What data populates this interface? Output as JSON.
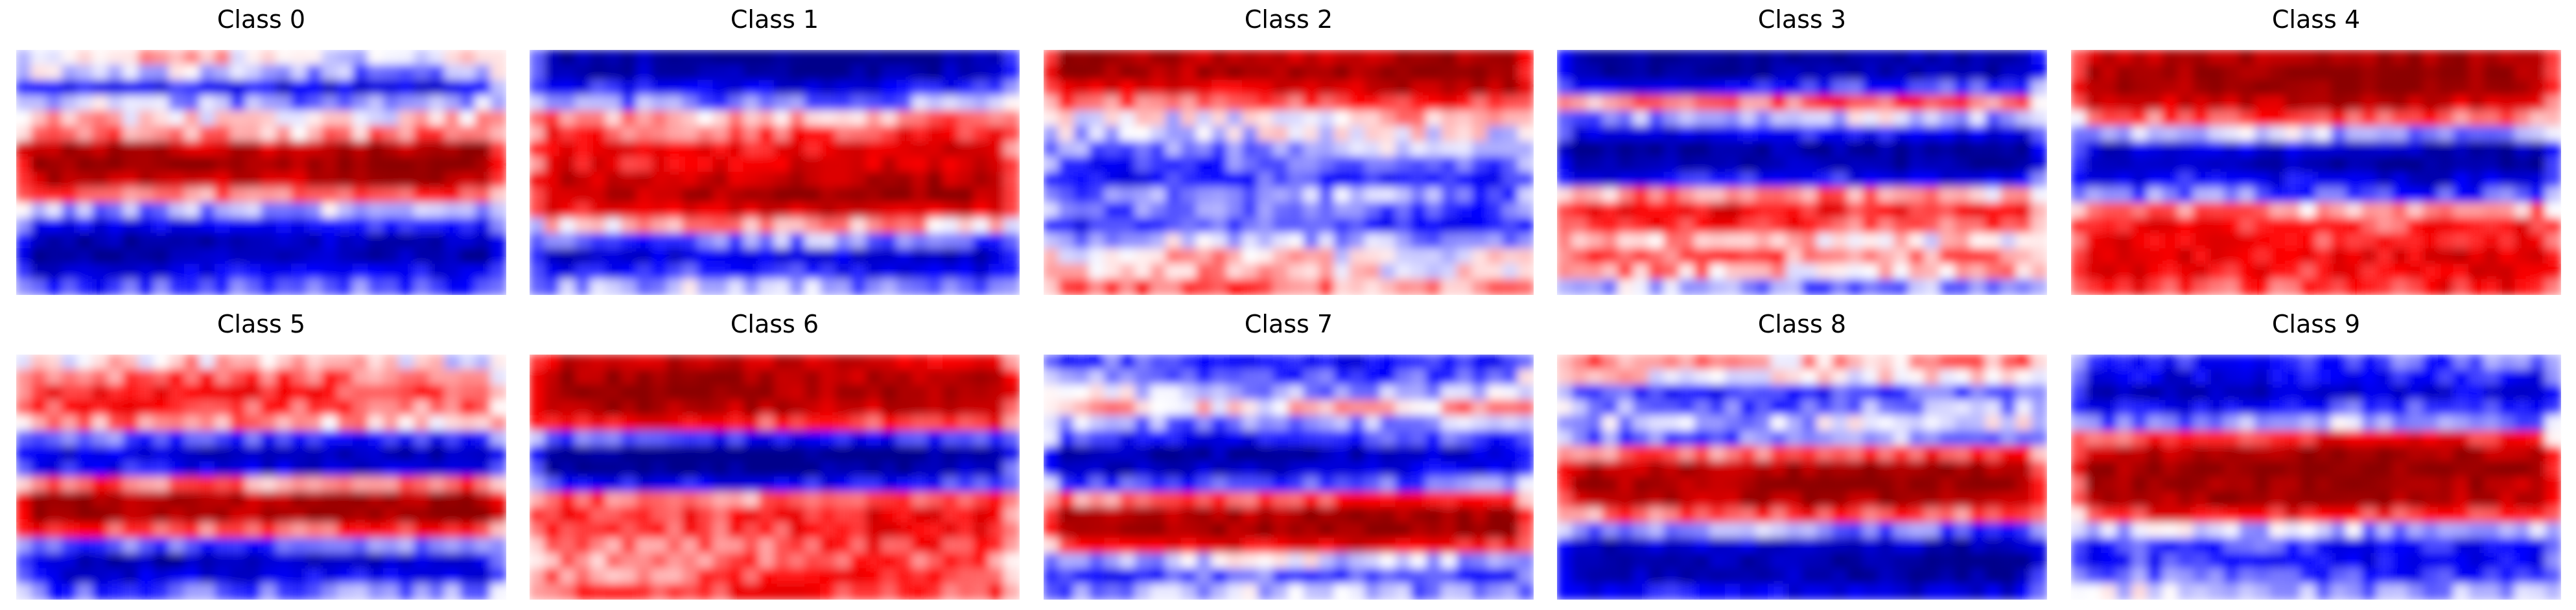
{
  "chart_data": {
    "type": "heatmap",
    "colormap": [
      "#00008b",
      "#0000ff",
      "#ffffff",
      "#ff0000",
      "#8b0000"
    ],
    "value_range": [
      -1,
      1
    ],
    "grid": false,
    "axes_visible": false,
    "layout": "2 rows x 5 columns",
    "panels": [
      {
        "title": "Class 0",
        "row_profile": [
          0.05,
          -0.15,
          -0.55,
          -0.2,
          0.05,
          0.25,
          0.8,
          0.95,
          0.75,
          0.3,
          -0.15,
          -0.55,
          -0.8,
          -0.85,
          -0.6,
          -0.35
        ]
      },
      {
        "title": "Class 1",
        "row_profile": [
          -0.95,
          -0.85,
          -0.55,
          -0.25,
          0.2,
          0.4,
          0.55,
          0.6,
          0.75,
          0.85,
          0.6,
          0.15,
          -0.3,
          -0.7,
          -0.5,
          -0.2
        ]
      },
      {
        "title": "Class 2",
        "row_profile": [
          0.85,
          0.9,
          0.7,
          0.35,
          0.05,
          -0.05,
          -0.2,
          -0.35,
          -0.45,
          -0.25,
          -0.3,
          -0.45,
          -0.15,
          0.05,
          0.1,
          0.3
        ]
      },
      {
        "title": "Class 3",
        "row_profile": [
          -0.95,
          -0.9,
          -0.45,
          0.3,
          -0.15,
          -0.6,
          -0.95,
          -0.9,
          -0.55,
          0.2,
          0.5,
          0.4,
          0.1,
          0.3,
          0.15,
          -0.2
        ]
      },
      {
        "title": "Class 4",
        "row_profile": [
          0.85,
          0.95,
          0.9,
          0.7,
          0.35,
          -0.2,
          -0.75,
          -0.9,
          -0.6,
          -0.35,
          0.2,
          0.45,
          0.5,
          0.6,
          0.55,
          0.45
        ]
      },
      {
        "title": "Class 5",
        "row_profile": [
          0.05,
          0.3,
          0.45,
          0.35,
          0.2,
          -0.4,
          -0.75,
          -0.6,
          0.3,
          0.85,
          0.9,
          0.4,
          -0.3,
          -0.75,
          -0.6,
          -0.3
        ]
      },
      {
        "title": "Class 6",
        "row_profile": [
          0.7,
          0.85,
          0.9,
          0.8,
          0.45,
          -0.45,
          -0.95,
          -0.9,
          -0.5,
          0.3,
          0.5,
          0.45,
          0.35,
          0.3,
          0.35,
          0.4
        ]
      },
      {
        "title": "Class 7",
        "row_profile": [
          -0.45,
          -0.3,
          -0.15,
          0.15,
          -0.2,
          -0.45,
          -0.8,
          -0.7,
          -0.35,
          0.35,
          0.85,
          0.9,
          0.55,
          -0.15,
          -0.4,
          -0.2
        ]
      },
      {
        "title": "Class 8",
        "row_profile": [
          0.2,
          0.05,
          -0.4,
          -0.25,
          -0.1,
          -0.25,
          0.35,
          0.85,
          0.9,
          0.8,
          0.35,
          -0.3,
          -0.75,
          -0.9,
          -0.85,
          -0.6
        ]
      },
      {
        "title": "Class 9",
        "row_profile": [
          -0.4,
          -0.55,
          -0.7,
          -0.45,
          -0.2,
          0.45,
          0.85,
          0.95,
          0.9,
          0.85,
          0.45,
          -0.15,
          -0.45,
          -0.5,
          -0.35,
          -0.15
        ]
      }
    ]
  }
}
